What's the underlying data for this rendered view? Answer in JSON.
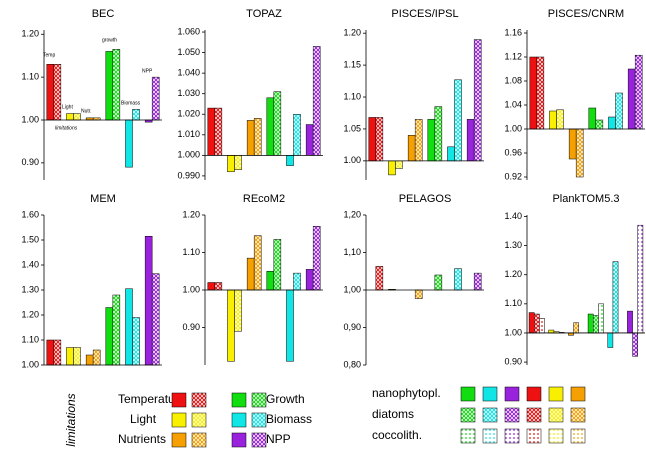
{
  "chart_data": [
    {
      "type": "bar",
      "title": "BEC",
      "ylim": [
        0.86,
        1.21
      ],
      "baseline": 1,
      "yticks": [
        {
          "value": 0.9,
          "label": "0.90"
        },
        {
          "value": 1.0,
          "label": "1.00"
        },
        {
          "value": 1.1,
          "label": "1.10"
        },
        {
          "value": 1.2,
          "label": "1.20"
        }
      ],
      "values": [
        [
          1.13,
          1.13,
          null
        ],
        [
          1.015,
          1.015,
          null
        ],
        [
          1.005,
          1.005,
          null
        ],
        [
          1.16,
          1.165,
          null
        ],
        [
          0.89,
          1.025,
          null
        ],
        [
          0.995,
          1.1,
          null
        ]
      ],
      "annotations": [
        "Temp",
        "Light",
        "Nutr.",
        "growth",
        "Biomass",
        "NPP",
        "limitations"
      ]
    },
    {
      "type": "bar",
      "title": "TOPAZ",
      "ylim": [
        0.988,
        1.061
      ],
      "baseline": 1,
      "yticks": [
        {
          "value": 0.99,
          "label": "0.990"
        },
        {
          "value": 1.0,
          "label": "1.000"
        },
        {
          "value": 1.01,
          "label": "1.010"
        },
        {
          "value": 1.02,
          "label": "1.020"
        },
        {
          "value": 1.03,
          "label": "1.030"
        },
        {
          "value": 1.04,
          "label": "1.040"
        },
        {
          "value": 1.05,
          "label": "1.050"
        },
        {
          "value": 1.06,
          "label": "1.060"
        }
      ],
      "values": [
        [
          1.023,
          1.023,
          null
        ],
        [
          0.992,
          0.993,
          null
        ],
        [
          1.017,
          1.018,
          null
        ],
        [
          1.028,
          1.031,
          null
        ],
        [
          0.995,
          1.02,
          null
        ],
        [
          1.015,
          1.053,
          null
        ]
      ]
    },
    {
      "type": "bar",
      "title": "PISCES/IPSL",
      "ylim": [
        0.97,
        1.205
      ],
      "baseline": 1,
      "yticks": [
        {
          "value": 1.0,
          "label": "1.00"
        },
        {
          "value": 1.05,
          "label": "1.05"
        },
        {
          "value": 1.1,
          "label": "1.10"
        },
        {
          "value": 1.15,
          "label": "1.15"
        },
        {
          "value": 1.2,
          "label": "1.20"
        }
      ],
      "values": [
        [
          1.068,
          1.068,
          null
        ],
        [
          0.978,
          0.988,
          null
        ],
        [
          1.04,
          1.065,
          null
        ],
        [
          1.065,
          1.085,
          null
        ],
        [
          1.022,
          1.127,
          null
        ],
        [
          1.065,
          1.19,
          null
        ]
      ]
    },
    {
      "type": "bar",
      "title": "PISCES/CNRM",
      "ylim": [
        0.915,
        1.165
      ],
      "baseline": 1,
      "yticks": [
        {
          "value": 0.92,
          "label": "0.92"
        },
        {
          "value": 0.96,
          "label": "0.96"
        },
        {
          "value": 1.0,
          "label": "1.00"
        },
        {
          "value": 1.04,
          "label": "1.04"
        },
        {
          "value": 1.08,
          "label": "1.08"
        },
        {
          "value": 1.12,
          "label": "1.12"
        },
        {
          "value": 1.16,
          "label": "1.16"
        }
      ],
      "values": [
        [
          1.12,
          1.12,
          null
        ],
        [
          1.03,
          1.032,
          null
        ],
        [
          0.95,
          0.92,
          null
        ],
        [
          1.035,
          1.015,
          null
        ],
        [
          1.02,
          1.06,
          null
        ],
        [
          1.1,
          1.123,
          null
        ]
      ]
    },
    {
      "type": "bar",
      "title": "MEM",
      "ylim": [
        1.0,
        1.6
      ],
      "baseline": 1,
      "yticks": [
        {
          "value": 1.0,
          "label": "1.00"
        },
        {
          "value": 1.1,
          "label": "1.10"
        },
        {
          "value": 1.2,
          "label": "1.20"
        },
        {
          "value": 1.3,
          "label": "1.30"
        },
        {
          "value": 1.4,
          "label": "1.40"
        },
        {
          "value": 1.5,
          "label": "1.50"
        },
        {
          "value": 1.6,
          "label": "1.60"
        }
      ],
      "values": [
        [
          1.1,
          1.1,
          null
        ],
        [
          1.07,
          1.07,
          null
        ],
        [
          1.04,
          1.06,
          null
        ],
        [
          1.23,
          1.28,
          null
        ],
        [
          1.305,
          1.19,
          null
        ],
        [
          1.515,
          1.365,
          null
        ]
      ]
    },
    {
      "type": "bar",
      "title": "REcoM2",
      "ylim": [
        0.8,
        1.2
      ],
      "baseline": 1,
      "yticks": [
        {
          "value": 0.9,
          "label": "0.90"
        },
        {
          "value": 1.0,
          "label": "1.00"
        },
        {
          "value": 1.1,
          "label": "1.10"
        },
        {
          "value": 1.2,
          "label": "1.20"
        }
      ],
      "values": [
        [
          1.02,
          1.02,
          null
        ],
        [
          0.81,
          0.89,
          null
        ],
        [
          1.085,
          1.145,
          null
        ],
        [
          1.05,
          1.135,
          null
        ],
        [
          0.81,
          1.045,
          null
        ],
        [
          1.055,
          1.17,
          null
        ]
      ]
    },
    {
      "type": "bar",
      "title": "PELAGOS",
      "ylim": [
        0.8,
        1.2
      ],
      "baseline": 1,
      "yticks": [
        {
          "value": 0.8,
          "label": "0,80"
        },
        {
          "value": 0.9,
          "label": "0,90"
        },
        {
          "value": 1.0,
          "label": "1,00"
        },
        {
          "value": 1.1,
          "label": "1,10"
        },
        {
          "value": 1.2,
          "label": "1,20"
        }
      ],
      "values": [
        [
          null,
          1.063,
          null
        ],
        [
          1.002,
          null,
          null
        ],
        [
          null,
          0.977,
          null
        ],
        [
          null,
          1.04,
          null
        ],
        [
          null,
          1.057,
          null
        ],
        [
          null,
          1.045,
          null
        ]
      ]
    },
    {
      "type": "bar",
      "title": "PlankTOM5.3",
      "ylim": [
        0.89,
        1.405
      ],
      "baseline": 1,
      "yticks": [
        {
          "value": 0.9,
          "label": "0.90"
        },
        {
          "value": 1.0,
          "label": "1.00"
        },
        {
          "value": 1.1,
          "label": "1.10"
        },
        {
          "value": 1.2,
          "label": "1.20"
        },
        {
          "value": 1.3,
          "label": "1.30"
        },
        {
          "value": 1.4,
          "label": "1.40"
        }
      ],
      "values": [
        [
          1.07,
          1.065,
          1.05
        ],
        [
          1.01,
          1.005,
          1.002
        ],
        [
          0.992,
          1.035,
          null
        ],
        [
          1.065,
          1.06,
          1.1
        ],
        [
          0.95,
          1.245,
          null
        ],
        [
          1.075,
          0.92,
          1.37
        ]
      ]
    }
  ],
  "legend": {
    "title": "limitations",
    "categories": [
      "Temperature",
      "Light",
      "Nutrients",
      "Growth",
      "Biomass",
      "NPP"
    ],
    "colors": [
      "#ee1111",
      "#f8f000",
      "#f5a000",
      "#11dd11",
      "#11e6e6",
      "#9922dd"
    ],
    "series": [
      {
        "name": "nanophytopl.",
        "pattern": "solid"
      },
      {
        "name": "diatoms",
        "pattern": "cross"
      },
      {
        "name": "coccolith.",
        "pattern": "dots"
      }
    ],
    "row_order": [
      3,
      4,
      5,
      0,
      1,
      2
    ]
  }
}
